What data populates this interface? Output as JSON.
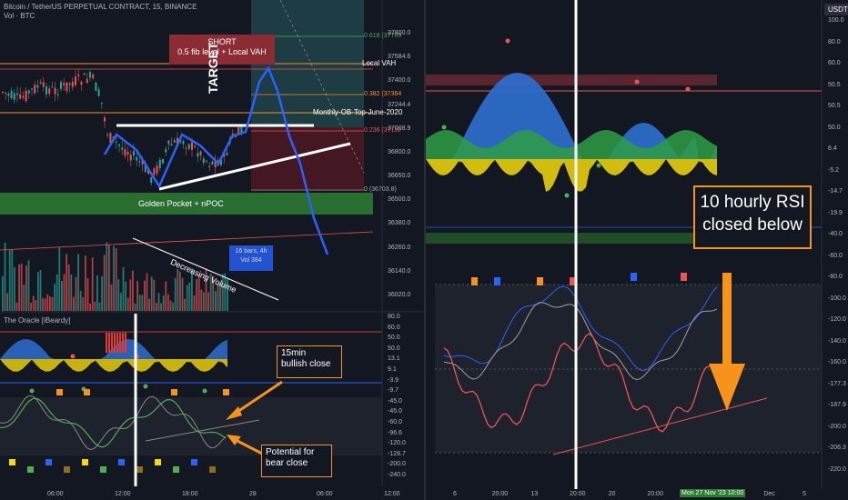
{
  "colors": {
    "bg": "#131722",
    "up": "#26a69a",
    "down": "#ef5350",
    "orange": "#f7931a",
    "blue": "#2962ff",
    "green": "#2e7d32"
  },
  "left": {
    "header": {
      "symbol": "Bitcoin / TetherUS PERPETUAL CONTRACT, 15, BINANCE",
      "vol": "Vol · BTC"
    },
    "price_axis": [
      "37800.0",
      "37584.6",
      "37400.0",
      "37244.4",
      "37008.9",
      "36800.0",
      "36650.0",
      "36500.0",
      "36380.0",
      "36260.0",
      "36140.0",
      "36020.0"
    ],
    "price_tag_time": "08:04",
    "fib_labels": [
      "0.618 (37769",
      "0.382 (37364",
      "0.236 (37110",
      "0 (36703.8)"
    ],
    "levels": {
      "local_vah": "Local VAH",
      "monthly": "Monthly-OB-Top-June-2020"
    },
    "short_box": {
      "line1": "SHORT",
      "line2": "0.5 fib level + Local VAH"
    },
    "target": "TARGET",
    "golden_pocket": "Golden Pocket + nPOC",
    "decreasing_volume": "Decreasing Volume",
    "bars_box": {
      "line1": "16 bars, 4h",
      "line2": "Vol 384"
    },
    "vol_tag": "384",
    "oracle_title": "The Oracle [iBeardy]",
    "oracle_axis": [
      "80.0",
      "60.0",
      "50.0",
      "50.0",
      "13.1",
      "9.1",
      "-3.9",
      "-9.7",
      "-45.0",
      "-45.0",
      "-60.0",
      "-96.6",
      "-120.0",
      "-128.7",
      "-200.0",
      "-240.0"
    ],
    "callout_15min": {
      "line1": "15min",
      "line2": "bullish close"
    },
    "callout_bear": {
      "line1": "Potential for",
      "line2": "bear close"
    },
    "time_axis": [
      "06:00",
      "12:00",
      "18:00",
      "28",
      "06:00",
      "12:00"
    ]
  },
  "right": {
    "usdt": "USDT",
    "axis": [
      "100.0",
      "80.0",
      "60.0",
      "50.5",
      "50.5",
      "50.0",
      "6.4",
      "-5.2",
      "-14.7",
      "-19.9",
      "-40.0",
      "-60.0",
      "-80.0",
      "-100.0",
      "-120.0",
      "-140.0",
      "-160.0",
      "-177.3",
      "-187.9",
      "-200.0",
      "-206.3",
      "-220.0"
    ],
    "rsi_note": {
      "line1": "10 hourly RSI",
      "line2": "closed below"
    },
    "time_axis": [
      "6",
      "20:00",
      "13",
      "20:00",
      "20",
      "20:00",
      "27",
      "20:00",
      "Dec",
      "5"
    ],
    "time_cursor": "Mon 27 Nov '23",
    "time_cursor2": "10:00",
    "tags": [
      "5",
      "5",
      "5"
    ]
  }
}
